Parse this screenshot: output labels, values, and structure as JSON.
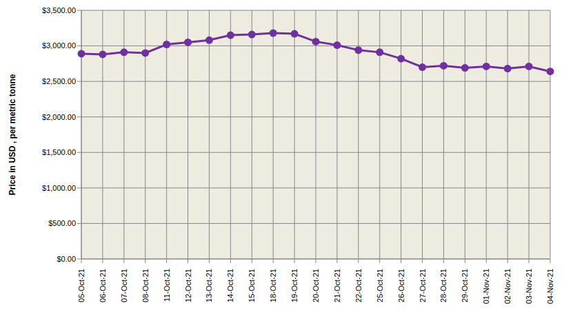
{
  "chart_data": {
    "type": "line",
    "y_label": "Price in USD , per metric tonne",
    "categories": [
      "05-Oct-21",
      "06-Oct-21",
      "07-Oct-21",
      "08-Oct-21",
      "11-Oct-21",
      "12-Oct-21",
      "13-Oct-21",
      "14-Oct-21",
      "15-Oct-21",
      "18-Oct-21",
      "19-Oct-21",
      "20-Oct-21",
      "21-Oct-21",
      "22-Oct-21",
      "25-Oct-21",
      "26-Oct-21",
      "27-Oct-21",
      "28-Oct-21",
      "29-Oct-21",
      "01-Nov-21",
      "02-Nov-21",
      "03-Nov-21",
      "04-Nov-21"
    ],
    "values": [
      2890,
      2880,
      2910,
      2900,
      3020,
      3050,
      3080,
      3150,
      3160,
      3180,
      3170,
      3060,
      3010,
      2940,
      2910,
      2820,
      2700,
      2720,
      2690,
      2710,
      2680,
      2710,
      2640
    ],
    "color": "#7030a0",
    "marker": "circle",
    "ylim": [
      0,
      3500
    ],
    "yticks": [
      {
        "value": 0,
        "label": "$0.00"
      },
      {
        "value": 500,
        "label": "$500.00"
      },
      {
        "value": 1000,
        "label": "$1,000.00"
      },
      {
        "value": 1500,
        "label": "$1,500.00"
      },
      {
        "value": 2000,
        "label": "$2,000.00"
      },
      {
        "value": 2500,
        "label": "$2,500.00"
      },
      {
        "value": 3000,
        "label": "$3,000.00"
      },
      {
        "value": 3500,
        "label": "$3,500.00"
      }
    ],
    "grid": true
  }
}
